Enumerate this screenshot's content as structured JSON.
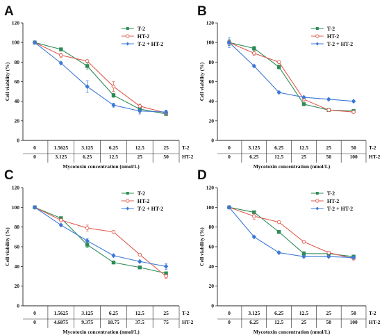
{
  "colors": {
    "t2": "#2e8b57",
    "ht2": "#e05a4e",
    "mix": "#3c78d8",
    "axis": "#222222"
  },
  "chart_data": [
    {
      "panel": "A",
      "type": "line",
      "ylabel": "Cell viability (%)",
      "xlabel": "Mycotoxin  concentration (nmol/L)",
      "ylim": [
        0,
        120
      ],
      "yticks": [
        0,
        20,
        40,
        60,
        80,
        100,
        120
      ],
      "row1": [
        "0",
        "1.5625",
        "3.125",
        "6.25",
        "12.5",
        "25"
      ],
      "row2": [
        "0",
        "3.125",
        "6.25",
        "12.5",
        "25",
        "50"
      ],
      "row1_label": "T-2",
      "row2_label": "HT-2",
      "legend": [
        "T-2",
        "HT-2",
        "T-2 + HT-2"
      ],
      "legend_position": "top-right",
      "series": [
        {
          "name": "T-2",
          "values": [
            100,
            93,
            76,
            46,
            32,
            27
          ],
          "errors": [
            1,
            1,
            3,
            2,
            2,
            1
          ]
        },
        {
          "name": "HT-2",
          "values": [
            100,
            87,
            81,
            55,
            35,
            28
          ],
          "errors": [
            1,
            2,
            1,
            5,
            2,
            1
          ]
        },
        {
          "name": "T-2 + HT-2",
          "values": [
            100,
            79,
            55,
            36,
            30,
            29
          ],
          "errors": [
            1,
            1,
            6,
            2,
            3,
            2
          ]
        }
      ]
    },
    {
      "panel": "B",
      "type": "line",
      "ylabel": "Cell viability (%)",
      "xlabel": "Mycotoxin  concentration (nmol/L)",
      "ylim": [
        0,
        120
      ],
      "yticks": [
        0,
        20,
        40,
        60,
        80,
        100,
        120
      ],
      "row1": [
        "0",
        "3.125",
        "6.25",
        "12.5",
        "25",
        "50"
      ],
      "row2": [
        "0",
        "6.25",
        "12.5",
        "25",
        "50",
        "100"
      ],
      "row1_label": "T-2",
      "row2_label": "HT-2",
      "legend": [
        "T-2",
        "HT-2",
        "T-2 + HT-2"
      ],
      "legend_position": "top-right",
      "series": [
        {
          "name": "T-2",
          "values": [
            100,
            94,
            75,
            37,
            31,
            30
          ],
          "errors": [
            3,
            2,
            2,
            1,
            1,
            1
          ]
        },
        {
          "name": "HT-2",
          "values": [
            100,
            89,
            80,
            42,
            31,
            29
          ],
          "errors": [
            2,
            2,
            1,
            2,
            1,
            1
          ]
        },
        {
          "name": "T-2 + HT-2",
          "values": [
            100,
            76,
            49,
            44,
            42,
            40
          ],
          "errors": [
            5,
            1,
            1,
            1,
            1,
            1
          ]
        }
      ]
    },
    {
      "panel": "C",
      "type": "line",
      "ylabel": "Cell viability (%)",
      "xlabel": "Mycotoxin  concentration (nmol/L)",
      "ylim": [
        0,
        120
      ],
      "yticks": [
        0,
        20,
        40,
        60,
        80,
        100,
        120
      ],
      "row1": [
        "0",
        "1.5625",
        "3.125",
        "6.25",
        "12.5",
        "25"
      ],
      "row2": [
        "0",
        "4.6875",
        "9.375",
        "18.75",
        "37.5",
        "75"
      ],
      "row1_label": "T-2",
      "row2_label": "HT-2",
      "legend": [
        "T-2",
        "HT-2",
        "T-2 + HT-2"
      ],
      "legend_position": "top-right",
      "series": [
        {
          "name": "T-2",
          "values": [
            100,
            89,
            62,
            44,
            39,
            33
          ],
          "errors": [
            1,
            1,
            3,
            1,
            1,
            1
          ]
        },
        {
          "name": "HT-2",
          "values": [
            100,
            87,
            79,
            75,
            52,
            30
          ],
          "errors": [
            1,
            1,
            3,
            1,
            1,
            2
          ]
        },
        {
          "name": "T-2 + HT-2",
          "values": [
            100,
            82,
            66,
            51,
            45,
            40
          ],
          "errors": [
            1,
            1,
            2,
            1,
            1,
            3
          ]
        }
      ]
    },
    {
      "panel": "D",
      "type": "line",
      "ylabel": "Cell viability (%)",
      "xlabel": "Mycotoxin  concentration (nmol/L)",
      "ylim": [
        0,
        120
      ],
      "yticks": [
        0,
        20,
        40,
        60,
        80,
        100,
        120
      ],
      "row1": [
        "0",
        "3.125",
        "6.25",
        "12.5",
        "25",
        "50"
      ],
      "row2": [
        "0",
        "6.25",
        "12.5",
        "25",
        "50",
        "100"
      ],
      "row1_label": "T-2",
      "row2_label": "HT-2",
      "legend": [
        "T-2",
        "HT-2",
        "T-2 + HT-2"
      ],
      "legend_position": "top-right",
      "series": [
        {
          "name": "T-2",
          "values": [
            100,
            95,
            75,
            53,
            53,
            50
          ],
          "errors": [
            1,
            1,
            1,
            2,
            1,
            1
          ]
        },
        {
          "name": "HT-2",
          "values": [
            100,
            91,
            85,
            65,
            54,
            48
          ],
          "errors": [
            1,
            3,
            1,
            1,
            1,
            1
          ]
        },
        {
          "name": "T-2 + HT-2",
          "values": [
            100,
            70,
            54,
            50,
            50,
            49
          ],
          "errors": [
            1,
            1,
            1,
            1,
            1,
            1
          ]
        }
      ]
    }
  ]
}
